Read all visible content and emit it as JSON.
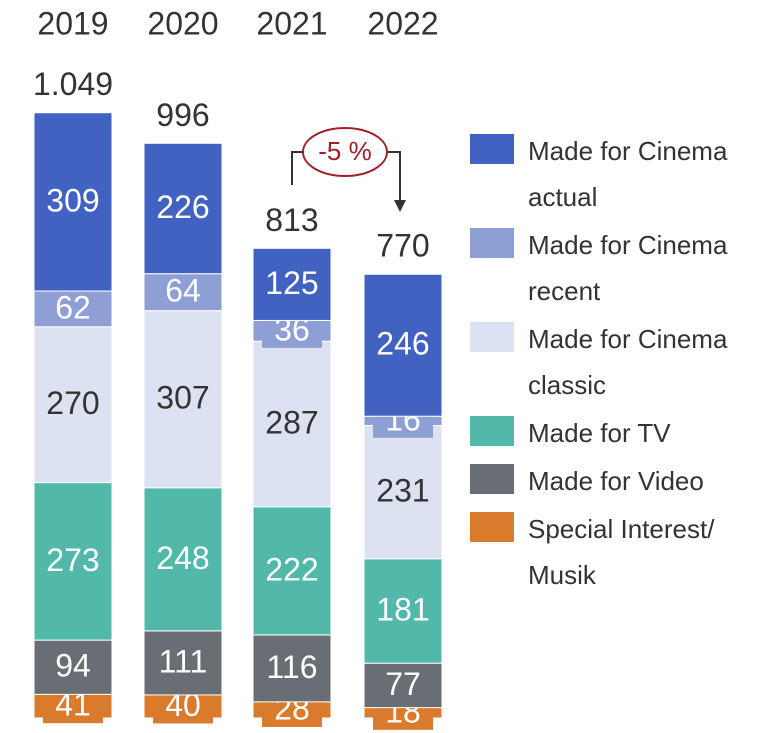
{
  "chart_data": {
    "type": "stacked_bar",
    "categories": [
      "2019",
      "2020",
      "2021",
      "2022"
    ],
    "series": [
      {
        "name": "Special Interest/ Musik",
        "color": "#d97a2c",
        "label_color": "#ffffff",
        "values": [
          41,
          40,
          28,
          18
        ]
      },
      {
        "name": "Made for Video",
        "color": "#686e74",
        "label_color": "#ffffff",
        "values": [
          94,
          111,
          116,
          77
        ]
      },
      {
        "name": "Made for TV",
        "color": "#52b9aa",
        "label_color": "#ffffff",
        "values": [
          273,
          248,
          222,
          181
        ]
      },
      {
        "name": "Made for Cinema classic",
        "color": "#dde2f2",
        "label_color": "#333333",
        "values": [
          270,
          307,
          287,
          231
        ]
      },
      {
        "name": "Made for Cinema recent",
        "color": "#8d9fd4",
        "label_color": "#ffffff",
        "values": [
          62,
          64,
          36,
          16
        ]
      },
      {
        "name": "Made for Cinema actual",
        "color": "#4262c2",
        "label_color": "#ffffff",
        "values": [
          309,
          226,
          125,
          246
        ]
      }
    ],
    "totals": {
      "values": [
        1049,
        996,
        813,
        770
      ],
      "value_labels": [
        "1.049",
        "996",
        "813",
        "770"
      ]
    },
    "annotation": "-5 %"
  }
}
